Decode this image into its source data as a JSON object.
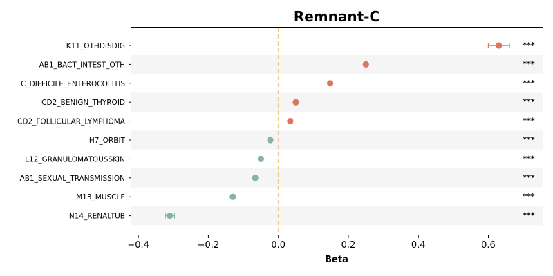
{
  "chart_data": {
    "type": "scatter",
    "title": "Remnant-C",
    "xlabel": "Beta",
    "ylabel": "",
    "xlim": [
      -0.42,
      0.755
    ],
    "xticks": [
      -0.4,
      -0.2,
      0.0,
      0.2,
      0.4,
      0.6
    ],
    "xtick_labels": [
      "−0.4",
      "−0.2",
      "0.0",
      "0.2",
      "0.4",
      "0.6"
    ],
    "reference_line": {
      "x": 0,
      "style": "dashed",
      "color": "#f0c98a"
    },
    "grid": false,
    "colors": {
      "positive": "#dd7560",
      "negative": "#86b59c",
      "band": "#f5f5f5"
    },
    "categories": [
      "K11_OTHDISDIG",
      "AB1_BACT_INTEST_OTH",
      "C_DIFFICILE_ENTEROCOLITIS",
      "CD2_BENIGN_THYROID",
      "CD2_FOLLICULAR_LYMPHOMA",
      "H7_ORBIT",
      "L12_GRANULOMATOUSSKIN",
      "AB1_SEXUAL_TRANSMISSION",
      "M13_MUSCLE",
      "N14_RENALTUB"
    ],
    "values": [
      0.63,
      0.25,
      0.148,
      0.05,
      0.034,
      -0.023,
      -0.05,
      -0.066,
      -0.13,
      -0.31
    ],
    "ci_low": [
      0.6,
      0.245,
      0.143,
      0.046,
      0.03,
      -0.027,
      -0.054,
      -0.071,
      -0.135,
      -0.323
    ],
    "ci_high": [
      0.66,
      0.255,
      0.153,
      0.054,
      0.038,
      -0.019,
      -0.046,
      -0.061,
      -0.125,
      -0.297
    ],
    "significance": [
      "***",
      "***",
      "***",
      "***",
      "***",
      "***",
      "***",
      "***",
      "***",
      "***"
    ]
  }
}
